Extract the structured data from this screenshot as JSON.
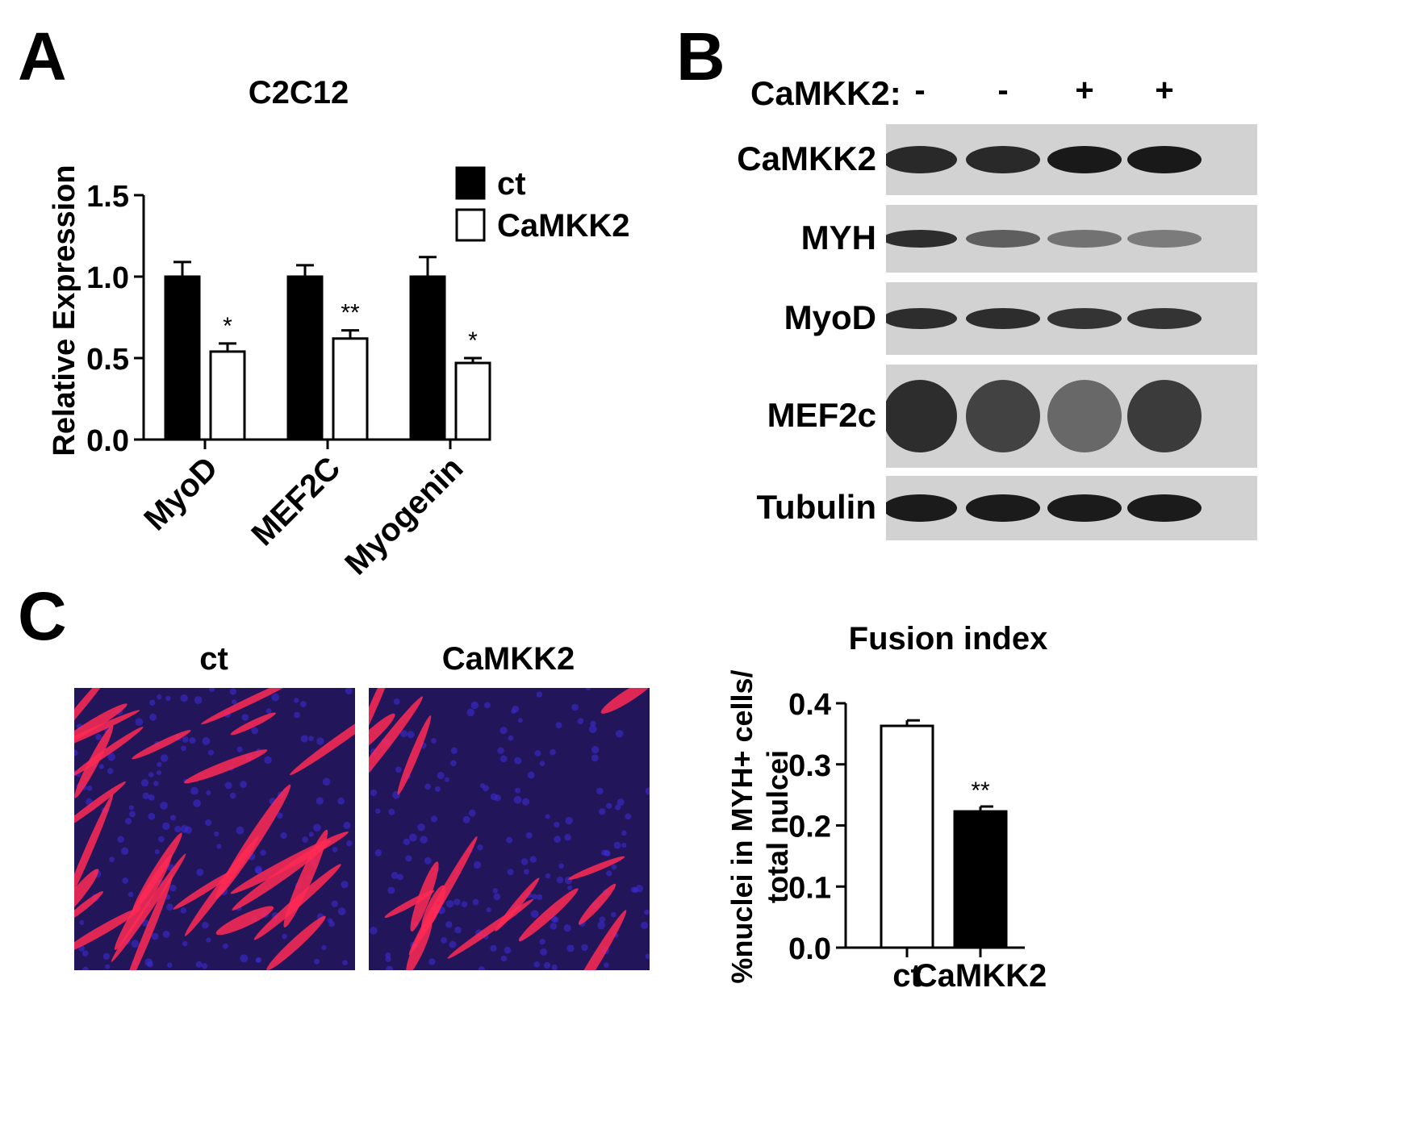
{
  "panels": {
    "a": "A",
    "b": "B",
    "c": "C"
  },
  "chart_data": [
    {
      "type": "bar",
      "title": "C2C12",
      "ylabel": "Relative Expression",
      "xlabel": "",
      "ylim": [
        0,
        1.5
      ],
      "yticks": [
        "0.0",
        "0.5",
        "1.0",
        "1.5"
      ],
      "categories": [
        "MyoD",
        "MEF2C",
        "Myogenin"
      ],
      "series": [
        {
          "name": "ct",
          "color": "#000000",
          "values": [
            1.0,
            1.0,
            1.0
          ],
          "errors": [
            0.09,
            0.07,
            0.12
          ]
        },
        {
          "name": "CaMKK2",
          "color": "#ffffff",
          "values": [
            0.54,
            0.62,
            0.47
          ],
          "errors": [
            0.05,
            0.05,
            0.03
          ]
        }
      ],
      "annotations": [
        "*",
        "**",
        "*"
      ],
      "legend": "top-right"
    },
    {
      "type": "bar",
      "title": "Fusion index",
      "ylabel_lines": [
        "%nuclei in MYH+ cells/",
        "total nulcei"
      ],
      "xlabel": "",
      "ylim": [
        0,
        0.4
      ],
      "yticks": [
        "0.0",
        "0.1",
        "0.2",
        "0.3",
        "0.4"
      ],
      "categories": [
        "ct",
        "CaMKK2"
      ],
      "values": [
        0.363,
        0.223
      ],
      "errors": [
        0.009,
        0.008
      ],
      "colors": [
        "#ffffff",
        "#000000"
      ],
      "annotations": [
        "",
        "**"
      ]
    }
  ],
  "western_blot": {
    "condition_label": "CaMKK2:",
    "conditions": [
      "-",
      "-",
      "+",
      "+"
    ],
    "rows": [
      {
        "label": "CaMKK2"
      },
      {
        "label": "MYH"
      },
      {
        "label": "MyoD"
      },
      {
        "label": "MEF2c"
      },
      {
        "label": "Tubulin"
      }
    ]
  },
  "microscopy": {
    "left_title": "ct",
    "right_title": "CaMKK2"
  }
}
